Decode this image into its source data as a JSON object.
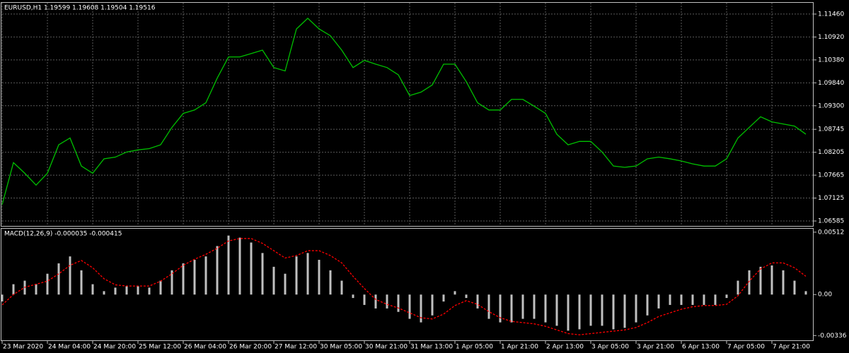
{
  "chart_data": [
    {
      "type": "line",
      "title": "EURUSD,H1  1.19599 1.19608 1.19504 1.19516",
      "categories": [
        "23 Mar 2020",
        null,
        null,
        null,
        "24 Mar 04:00",
        null,
        null,
        null,
        "24 Mar 20:00",
        null,
        null,
        null,
        "25 Mar 12:00",
        null,
        null,
        null,
        "26 Mar 04:00",
        null,
        null,
        null,
        "26 Mar 20:00",
        null,
        null,
        null,
        "27 Mar 12:00",
        null,
        null,
        null,
        "30 Mar 05:00",
        null,
        null,
        null,
        "30 Mar 21:00",
        null,
        null,
        null,
        "31 Mar 13:00",
        null,
        null,
        null,
        "1 Apr 05:00",
        null,
        null,
        null,
        "1 Apr 21:00",
        null,
        null,
        null,
        "2 Apr 13:00",
        null,
        null,
        null,
        "3 Apr 05:00",
        null,
        null,
        null,
        "3 Apr 21:00",
        null,
        null,
        null,
        "6 Apr 13:00",
        null,
        null,
        null,
        "7 Apr 05:00",
        null,
        null,
        null,
        "7 Apr 21:00",
        null,
        null,
        null
      ],
      "values": [
        1.0697,
        1.0796,
        1.0771,
        1.0743,
        1.0771,
        1.0838,
        1.0854,
        1.0788,
        1.0771,
        1.0805,
        1.0809,
        1.0821,
        1.0826,
        1.0829,
        1.0838,
        1.0879,
        1.0912,
        1.092,
        1.0937,
        1.0995,
        1.1045,
        1.1045,
        1.1053,
        1.1061,
        1.102,
        1.1012,
        1.1111,
        1.1136,
        1.1111,
        1.1095,
        1.1061,
        1.102,
        1.1037,
        1.1028,
        1.102,
        1.1003,
        1.0954,
        1.0962,
        1.0979,
        1.1028,
        1.1028,
        1.0987,
        1.0937,
        1.092,
        1.092,
        1.0945,
        1.0945,
        1.0929,
        1.0912,
        1.0863,
        1.0838,
        1.0846,
        1.0846,
        1.0821,
        1.0788,
        1.0785,
        1.0788,
        1.0805,
        1.0809,
        1.0805,
        1.08,
        1.0793,
        1.0788,
        1.0788,
        1.0805,
        1.0854,
        1.0879,
        1.0904,
        1.0892,
        1.0887,
        1.0882,
        1.0863
      ],
      "color": "#00c000",
      "ylim": [
        1.06469,
        1.11725
      ],
      "yticks": [
        {
          "value": 1.1146,
          "label": "1.11460"
        },
        {
          "value": 1.1092,
          "label": "1.10920"
        },
        {
          "value": 1.1038,
          "label": "1.10380"
        },
        {
          "value": 1.0984,
          "label": "1.09840"
        },
        {
          "value": 1.093,
          "label": "1.09300"
        },
        {
          "value": 1.08745,
          "label": "1.08745"
        },
        {
          "value": 1.08205,
          "label": "1.08205"
        },
        {
          "value": 1.07665,
          "label": "1.07665"
        },
        {
          "value": 1.07125,
          "label": "1.07125"
        },
        {
          "value": 1.06585,
          "label": "1.06585"
        }
      ],
      "grid": true
    },
    {
      "type": "bar",
      "title": "MACD(12,26,9) -0.000035 -0.000415",
      "series": [
        {
          "color": "#c0c0c0",
          "values": [
            -0.00057,
            0.00085,
            0.00114,
            0.00085,
            0.00171,
            0.00256,
            0.00313,
            0.00199,
            0.00085,
            0.00028,
            0.00057,
            0.00068,
            0.00068,
            0.00057,
            0.00114,
            0.00199,
            0.00256,
            0.00285,
            0.00313,
            0.00398,
            0.00484,
            0.00467,
            0.00427,
            0.00341,
            0.00228,
            0.00171,
            0.00313,
            0.00341,
            0.00285,
            0.00199,
            0.00114,
            -0.00028,
            -0.00085,
            -0.00114,
            -0.00114,
            -0.00142,
            -0.00199,
            -0.00228,
            -0.00171,
            -0.00057,
            0.00028,
            -0.00028,
            -0.00114,
            -0.00199,
            -0.00228,
            -0.00228,
            -0.00199,
            -0.00199,
            -0.00228,
            -0.00256,
            -0.00296,
            -0.00285,
            -0.00256,
            -0.00256,
            -0.00285,
            -0.00273,
            -0.00228,
            -0.00171,
            -0.00114,
            -0.00085,
            -0.00085,
            -0.00085,
            -0.00085,
            -0.00085,
            -0.00028,
            0.00114,
            0.00199,
            0.00228,
            0.00239,
            0.00199,
            0.00114,
            0.00028
          ]
        },
        {
          "color": "#ff0000",
          "type": "line",
          "values": [
            -0.00085,
            0,
            0.0006,
            0.00085,
            0.0011,
            0.0017,
            0.0024,
            0.0028,
            0.0022,
            0.0013,
            0.0008,
            0.0007,
            0.0007,
            0.0007,
            0.0011,
            0.0017,
            0.0024,
            0.0029,
            0.0033,
            0.0038,
            0.0044,
            0.0046,
            0.0046,
            0.0042,
            0.0036,
            0.003,
            0.0032,
            0.0036,
            0.0036,
            0.0032,
            0.0026,
            0.0015,
            0.0005,
            -0.0004,
            -0.0008,
            -0.0011,
            -0.0015,
            -0.0019,
            -0.002,
            -0.0016,
            -0.0009,
            -0.0005,
            -0.0008,
            -0.0014,
            -0.0019,
            -0.0022,
            -0.0023,
            -0.0024,
            -0.0026,
            -0.0029,
            -0.0032,
            -0.0033,
            -0.0032,
            -0.0031,
            -0.003,
            -0.0029,
            -0.0027,
            -0.0023,
            -0.0018,
            -0.0015,
            -0.0012,
            -0.001,
            -0.0009,
            -0.0009,
            -0.0008,
            -0.0001,
            0.0011,
            0.0021,
            0.0026,
            0.0026,
            0.0022,
            0.0015
          ]
        }
      ],
      "ylim": [
        -0.00375,
        0.0054
      ],
      "yticks": [
        0.00512,
        {
          "value": 0,
          "label": "0.00"
        },
        -0.00336
      ],
      "grid": false
    }
  ]
}
